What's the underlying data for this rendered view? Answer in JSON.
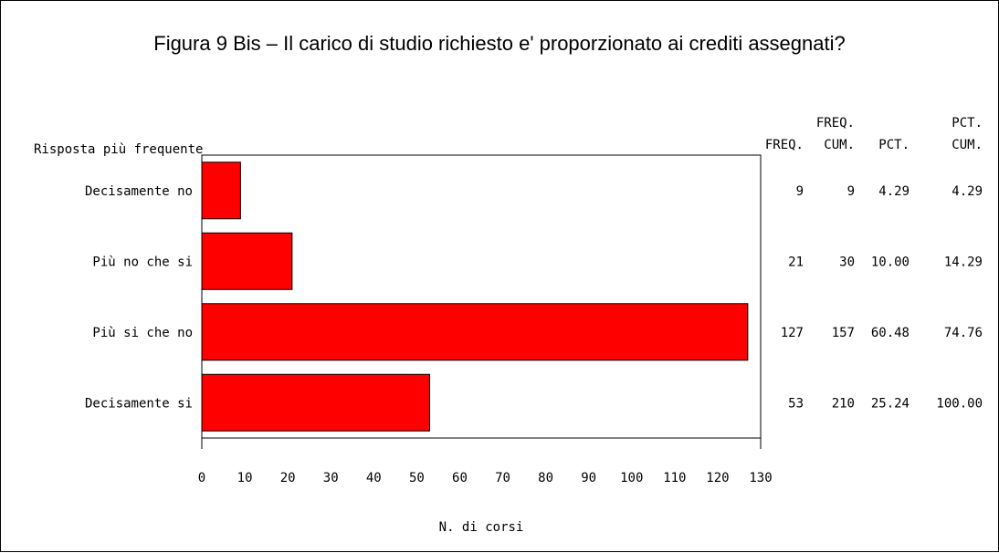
{
  "chart_data": {
    "type": "bar",
    "orientation": "horizontal",
    "title": "Figura 9 Bis – Il carico di studio richiesto e' proporzionato ai crediti assegnati?",
    "ylabel": "Risposta più frequente",
    "xlabel": "N. di corsi",
    "categories": [
      "Decisamente no",
      "Più no che si",
      "Più si che no",
      "Decisamente si"
    ],
    "values": [
      9,
      21,
      127,
      53
    ],
    "xlim": [
      0,
      130
    ],
    "x_ticks": [
      "0",
      "10",
      "20",
      "30",
      "40",
      "50",
      "60",
      "70",
      "80",
      "90",
      "100",
      "110",
      "120",
      "130"
    ],
    "grid": false,
    "bar_color": "#ff0000",
    "table": {
      "headers": [
        {
          "line1": "",
          "line2": "FREQ."
        },
        {
          "line1": "FREQ.",
          "line2": "CUM."
        },
        {
          "line1": "",
          "line2": "PCT."
        },
        {
          "line1": "PCT.",
          "line2": "CUM."
        }
      ],
      "rows": [
        [
          "9",
          "9",
          "4.29",
          "4.29"
        ],
        [
          "21",
          "30",
          "10.00",
          "14.29"
        ],
        [
          "127",
          "157",
          "60.48",
          "74.76"
        ],
        [
          "53",
          "210",
          "25.24",
          "100.00"
        ]
      ]
    }
  }
}
